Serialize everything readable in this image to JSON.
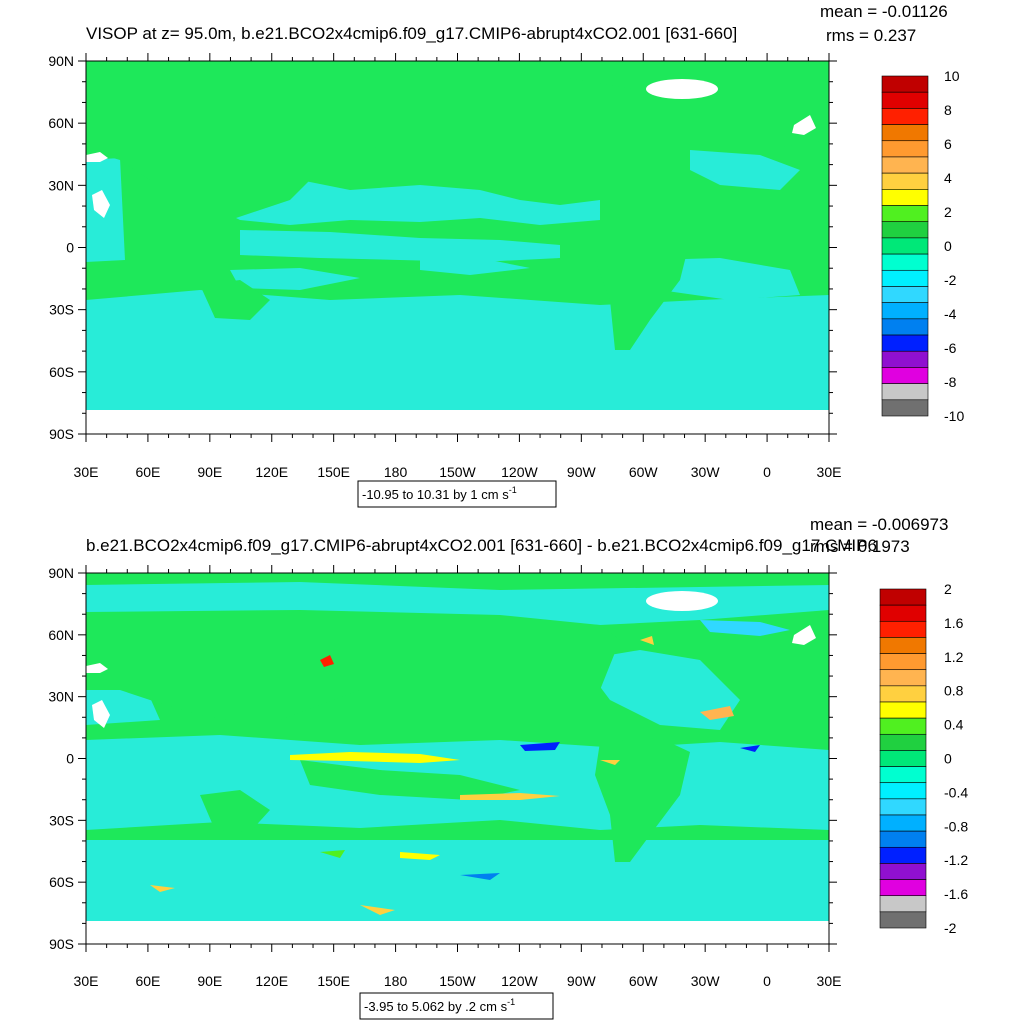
{
  "panels": [
    {
      "title": "VISOP at z=  95.0m, b.e21.BCO2x4cmip6.f09_g17.CMIP6-abrupt4xCO2.001 [631-660]",
      "mean_label": "mean = -0.01126",
      "rms_label": "rms = 0.237",
      "lat_ticks": [
        "90N",
        "60N",
        "30N",
        "0",
        "30S",
        "60S",
        "90S"
      ],
      "lon_ticks": [
        "30E",
        "60E",
        "90E",
        "120E",
        "150E",
        "180",
        "150W",
        "120W",
        "90W",
        "60W",
        "30W",
        "0",
        "30E"
      ],
      "colorbar": {
        "labels": [
          "10",
          "8",
          "6",
          "4",
          "2",
          "0",
          "-2",
          "-4",
          "-6",
          "-8",
          "-10"
        ],
        "colors": [
          "#c00000",
          "#e00000",
          "#ff2000",
          "#f07800",
          "#ff9a30",
          "#ffb450",
          "#ffd040",
          "#ffff00",
          "#50f020",
          "#20d040",
          "#00e878",
          "#00ffd0",
          "#00f0ff",
          "#30d8ff",
          "#00b0ff",
          "#0080f0",
          "#0020ff",
          "#9010d0",
          "#e000e0",
          "#c8c8c8",
          "#707070"
        ]
      },
      "info_label": "-10.95 to 10.31 by 1 cm s",
      "info_sup": "-1"
    },
    {
      "title": "b.e21.BCO2x4cmip6.f09_g17.CMIP6-abrupt4xCO2.001 [631-660] - b.e21.BCO2x4cmip6.f09_g17.CMIP6",
      "mean_label": "mean = -0.006973",
      "rms_label": "rms = 0.1973",
      "lat_ticks": [
        "90N",
        "60N",
        "30N",
        "0",
        "30S",
        "60S",
        "90S"
      ],
      "lon_ticks": [
        "30E",
        "60E",
        "90E",
        "120E",
        "150E",
        "180",
        "150W",
        "120W",
        "90W",
        "60W",
        "30W",
        "0",
        "30E"
      ],
      "colorbar": {
        "labels": [
          "2",
          "1.6",
          "1.2",
          "0.8",
          "0.4",
          "0",
          "-0.4",
          "-0.8",
          "-1.2",
          "-1.6",
          "-2"
        ],
        "colors": [
          "#c00000",
          "#e00000",
          "#ff2000",
          "#f07800",
          "#ff9a30",
          "#ffb450",
          "#ffd040",
          "#ffff00",
          "#50f020",
          "#20d040",
          "#00e878",
          "#00ffd0",
          "#00f0ff",
          "#30d8ff",
          "#00b0ff",
          "#0080f0",
          "#0020ff",
          "#9010d0",
          "#e000e0",
          "#c8c8c8",
          "#707070"
        ]
      },
      "info_label": "-3.95 to 5.062 by .2 cm s",
      "info_sup": "-1"
    }
  ],
  "colors": {
    "ocean_green": "#1ee85a",
    "land_cyan": "#28ecd8",
    "missing": "#ffffff"
  }
}
